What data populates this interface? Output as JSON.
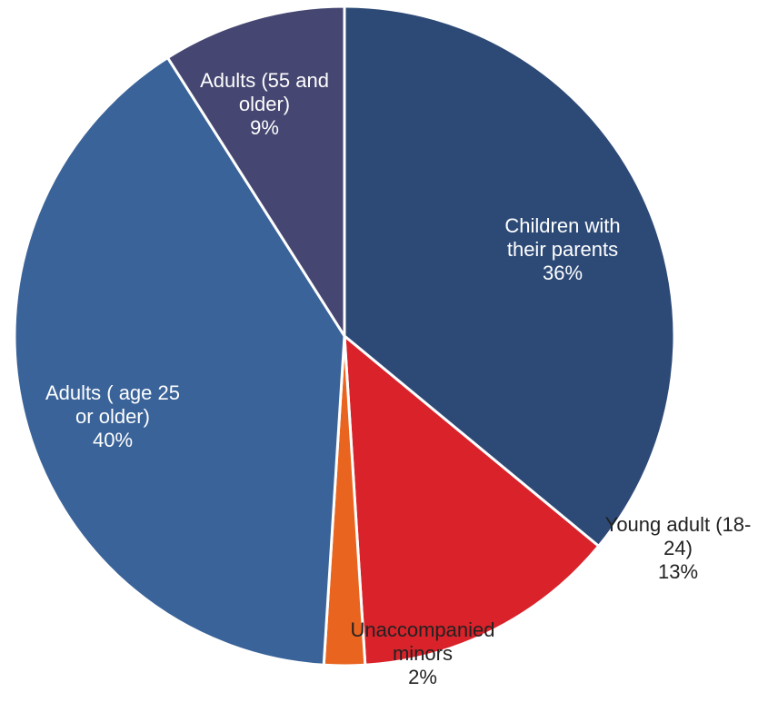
{
  "chart_data": {
    "type": "pie",
    "title": "",
    "start_angle_deg": 0,
    "direction": "clockwise",
    "slices": [
      {
        "label_lines": [
          "Children with",
          "their parents"
        ],
        "value": 36,
        "value_label": "36%",
        "color": "#2d4a77"
      },
      {
        "label_lines": [
          "Young adult (18-",
          "24)"
        ],
        "value": 13,
        "value_label": "13%",
        "color": "#d9222a"
      },
      {
        "label_lines": [
          "Unaccompanied",
          "minors"
        ],
        "value": 2,
        "value_label": "2%",
        "color": "#e8641f"
      },
      {
        "label_lines": [
          "Adults ( age 25",
          "or older)"
        ],
        "value": 40,
        "value_label": "40%",
        "color": "#3a6399"
      },
      {
        "label_lines": [
          "Adults (55 and",
          "older)"
        ],
        "value": 9,
        "value_label": "9%",
        "color": "#454671"
      }
    ]
  }
}
